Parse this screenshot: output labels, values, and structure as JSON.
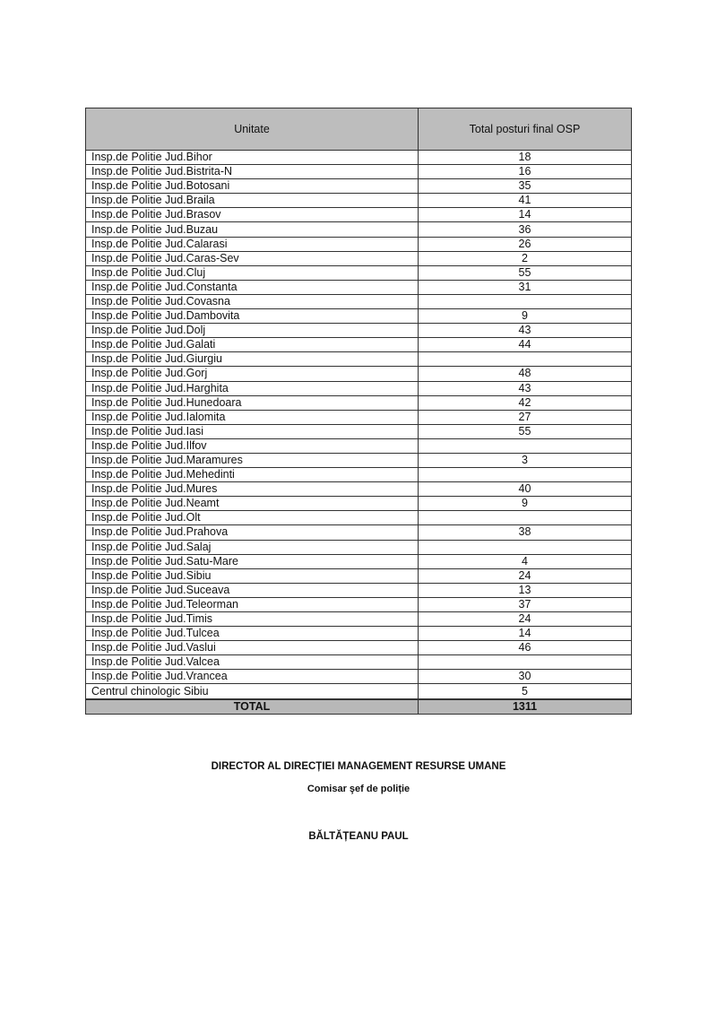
{
  "table": {
    "headers": [
      "Unitate",
      "Total posturi final OSP"
    ],
    "rows": [
      {
        "unit": "Insp.de Politie Jud.Bihor",
        "total": "18"
      },
      {
        "unit": "Insp.de Politie Jud.Bistrita-N",
        "total": "16"
      },
      {
        "unit": "Insp.de Politie Jud.Botosani",
        "total": "35"
      },
      {
        "unit": "Insp.de Politie Jud.Braila",
        "total": "41"
      },
      {
        "unit": "Insp.de Politie Jud.Brasov",
        "total": "14"
      },
      {
        "unit": "Insp.de Politie Jud.Buzau",
        "total": "36"
      },
      {
        "unit": "Insp.de Politie Jud.Calarasi",
        "total": "26"
      },
      {
        "unit": "Insp.de Politie Jud.Caras-Sev",
        "total": "2"
      },
      {
        "unit": "Insp.de Politie Jud.Cluj",
        "total": "55"
      },
      {
        "unit": "Insp.de Politie Jud.Constanta",
        "total": "31"
      },
      {
        "unit": "Insp.de Politie Jud.Covasna",
        "total": ""
      },
      {
        "unit": "Insp.de Politie Jud.Dambovita",
        "total": "9"
      },
      {
        "unit": "Insp.de Politie Jud.Dolj",
        "total": "43"
      },
      {
        "unit": "Insp.de Politie Jud.Galati",
        "total": "44"
      },
      {
        "unit": "Insp.de Politie Jud.Giurgiu",
        "total": ""
      },
      {
        "unit": "Insp.de Politie Jud.Gorj",
        "total": "48"
      },
      {
        "unit": "Insp.de Politie Jud.Harghita",
        "total": "43"
      },
      {
        "unit": "Insp.de Politie Jud.Hunedoara",
        "total": "42"
      },
      {
        "unit": "Insp.de Politie Jud.Ialomita",
        "total": "27"
      },
      {
        "unit": "Insp.de Politie Jud.Iasi",
        "total": "55"
      },
      {
        "unit": "Insp.de Politie Jud.Ilfov",
        "total": ""
      },
      {
        "unit": "Insp.de Politie Jud.Maramures",
        "total": "3"
      },
      {
        "unit": "Insp.de Politie Jud.Mehedinti",
        "total": ""
      },
      {
        "unit": "Insp.de Politie Jud.Mures",
        "total": "40"
      },
      {
        "unit": "Insp.de Politie Jud.Neamt",
        "total": "9"
      },
      {
        "unit": "Insp.de Politie Jud.Olt",
        "total": ""
      },
      {
        "unit": "Insp.de Politie Jud.Prahova",
        "total": "38"
      },
      {
        "unit": "Insp.de Politie Jud.Salaj",
        "total": ""
      },
      {
        "unit": "Insp.de Politie Jud.Satu-Mare",
        "total": "4"
      },
      {
        "unit": "Insp.de Politie Jud.Sibiu",
        "total": "24"
      },
      {
        "unit": "Insp.de Politie Jud.Suceava",
        "total": "13"
      },
      {
        "unit": "Insp.de Politie Jud.Teleorman",
        "total": "37"
      },
      {
        "unit": "Insp.de Politie Jud.Timis",
        "total": "24"
      },
      {
        "unit": "Insp.de Politie Jud.Tulcea",
        "total": "14"
      },
      {
        "unit": "Insp.de Politie Jud.Vaslui",
        "total": "46"
      },
      {
        "unit": "Insp.de Politie Jud.Valcea",
        "total": ""
      },
      {
        "unit": "Insp.de Politie Jud.Vrancea",
        "total": "30"
      },
      {
        "unit": "Centrul chinologic Sibiu",
        "total": "5"
      }
    ],
    "total_label": "TOTAL",
    "total_value": "1311"
  },
  "signature": {
    "title": "DIRECTOR AL DIRECȚIEI MANAGEMENT RESURSE UMANE",
    "rank": "Comisar şef de poliție",
    "name": "BĂLTĂȚEANU PAUL"
  }
}
